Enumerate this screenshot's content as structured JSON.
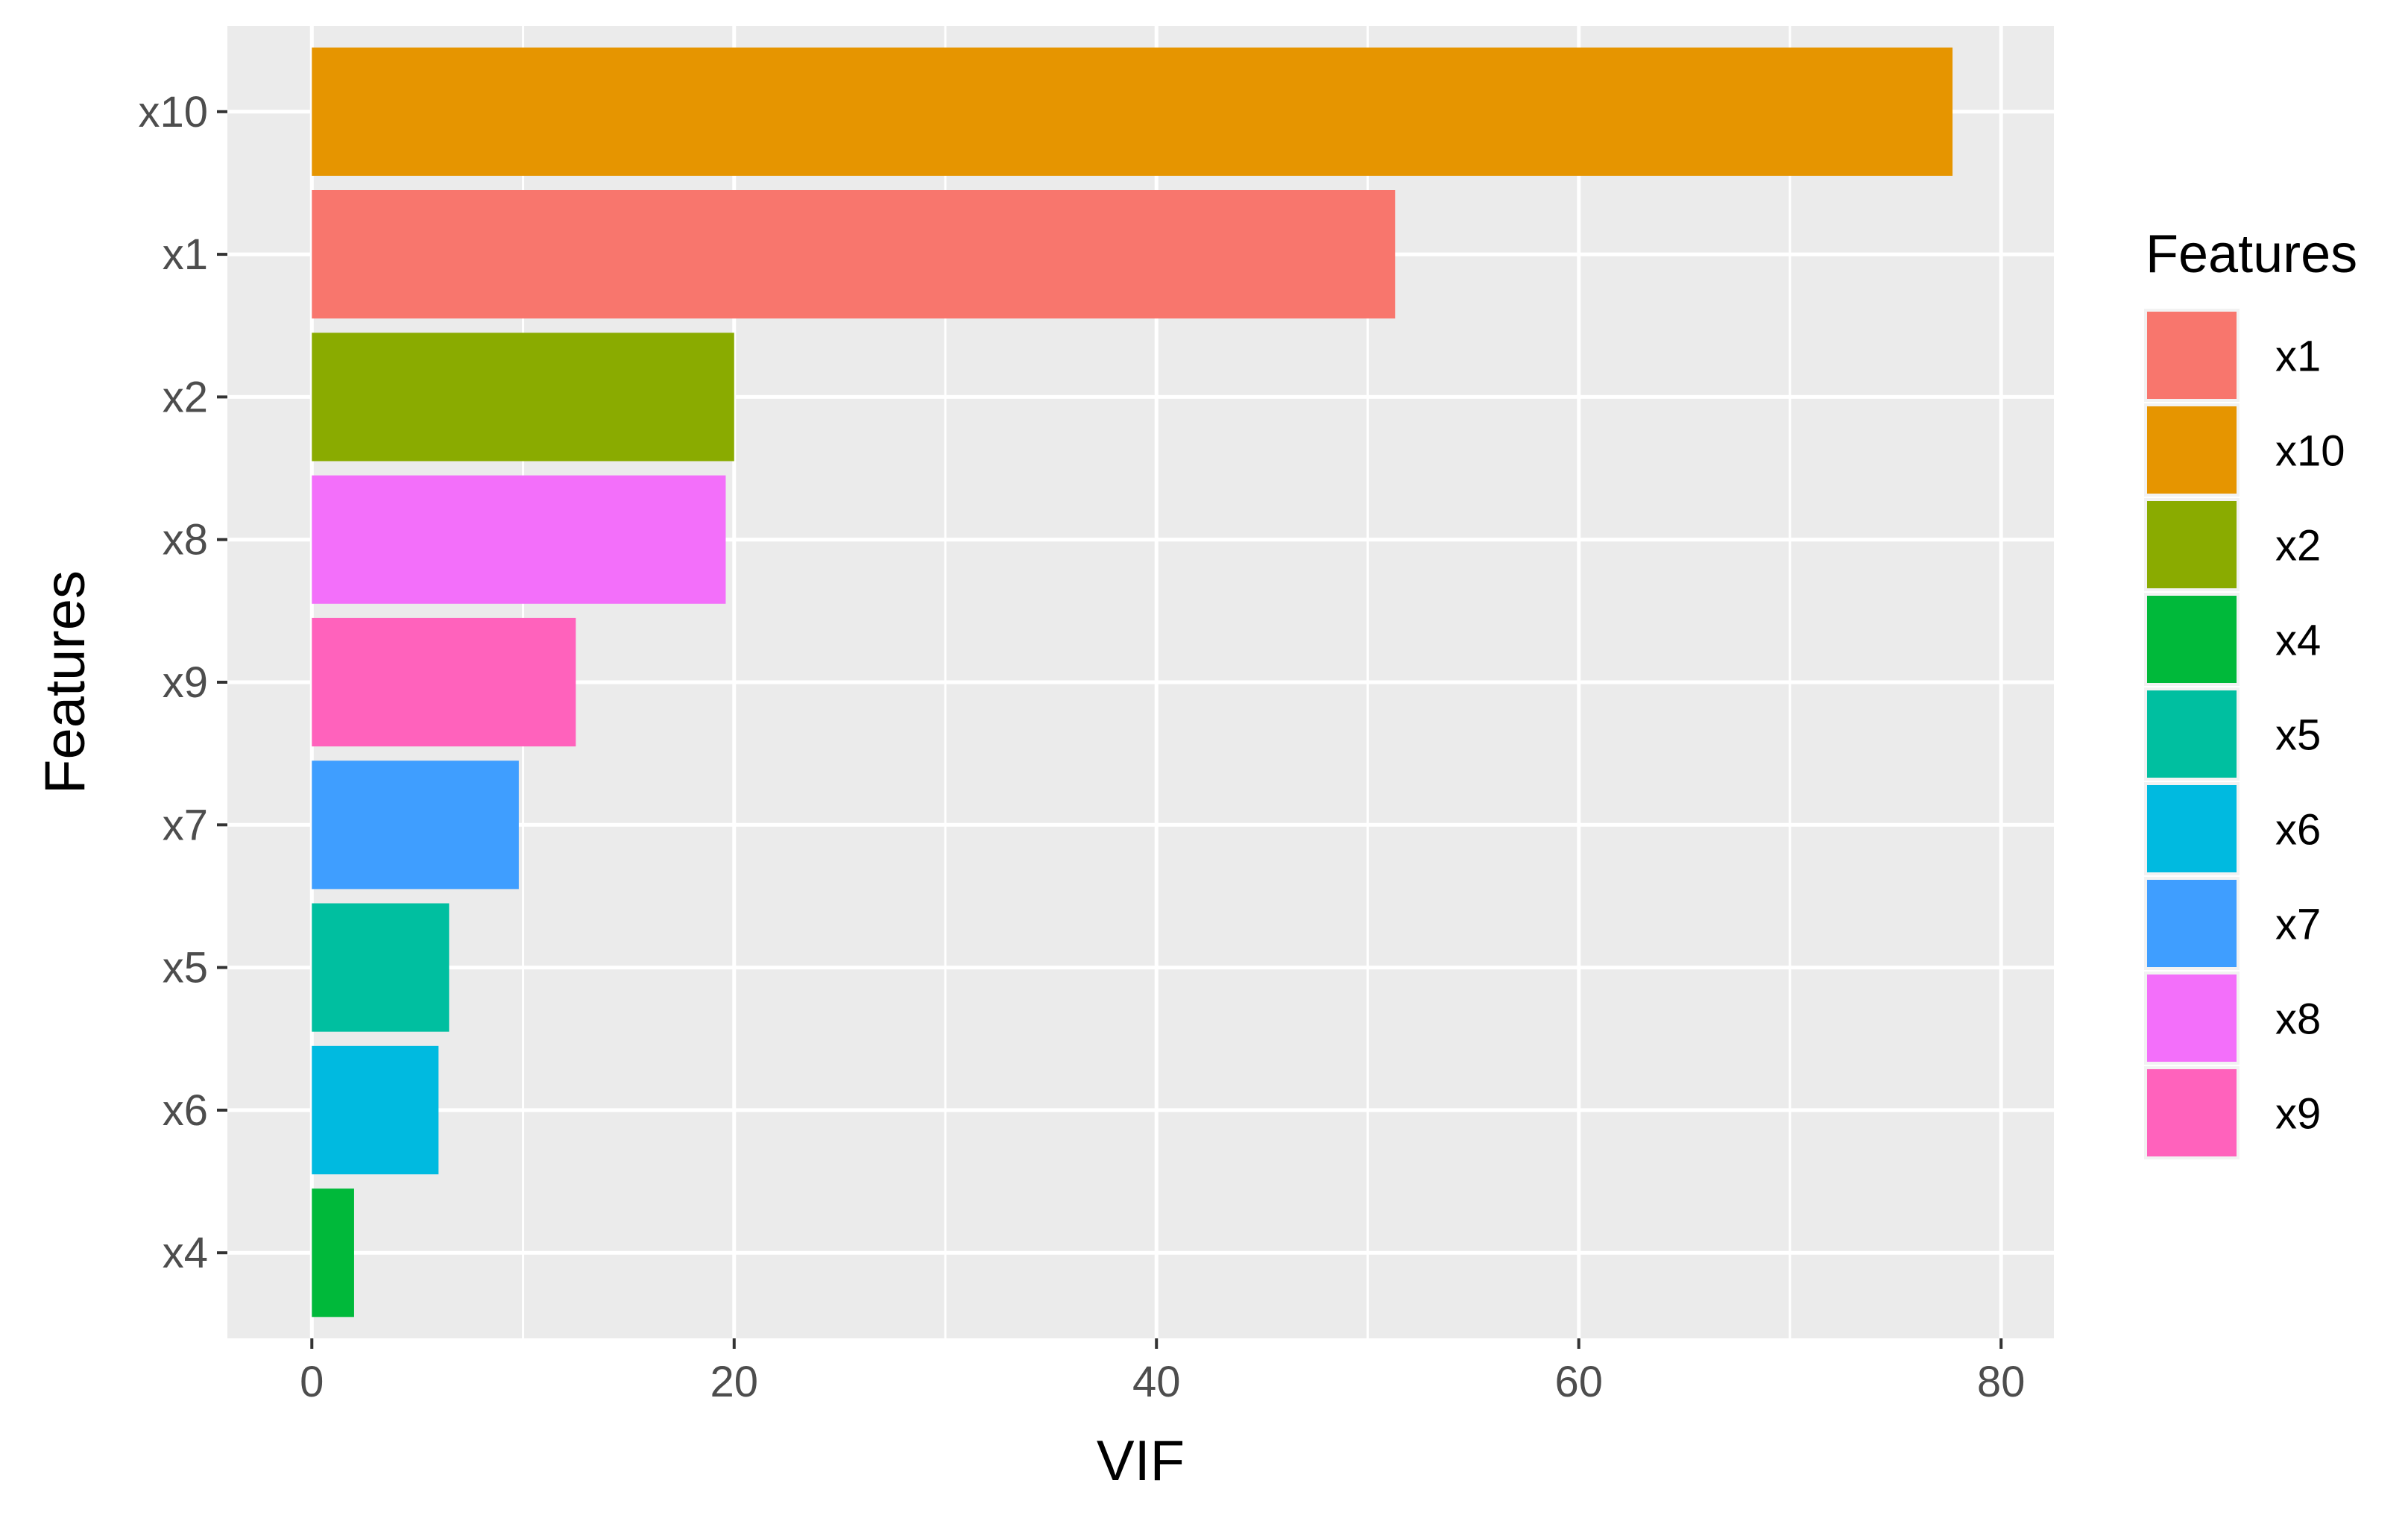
{
  "chart_data": {
    "type": "bar",
    "orientation": "horizontal",
    "title": "",
    "xlabel": "VIF",
    "ylabel": "Features",
    "xlim": [
      -4,
      82.5
    ],
    "xticks": [
      0,
      20,
      40,
      60,
      80
    ],
    "x_minor_gridlines": [
      10,
      30,
      50,
      70
    ],
    "grid": true,
    "panel_background": "#ebebeb",
    "gridline_color": "#ffffff",
    "bars": [
      {
        "category": "x10",
        "value": 77.7,
        "color": "#E69500"
      },
      {
        "category": "x1",
        "value": 51.3,
        "color": "#F8766D"
      },
      {
        "category": "x2",
        "value": 20.0,
        "color": "#8AAB00"
      },
      {
        "category": "x8",
        "value": 19.6,
        "color": "#F36FFA"
      },
      {
        "category": "x9",
        "value": 12.5,
        "color": "#FF62BC"
      },
      {
        "category": "x7",
        "value": 9.8,
        "color": "#3F9EFF"
      },
      {
        "category": "x5",
        "value": 6.5,
        "color": "#00BFA0"
      },
      {
        "category": "x6",
        "value": 6.0,
        "color": "#00BAE0"
      },
      {
        "category": "x4",
        "value": 2.0,
        "color": "#00B93A"
      }
    ],
    "legend": {
      "title": "Features",
      "placement": "right",
      "entries": [
        {
          "label": "x1",
          "color": "#F8766D"
        },
        {
          "label": "x10",
          "color": "#E69500"
        },
        {
          "label": "x2",
          "color": "#8AAB00"
        },
        {
          "label": "x4",
          "color": "#00B93A"
        },
        {
          "label": "x5",
          "color": "#00BFA0"
        },
        {
          "label": "x6",
          "color": "#00BAE0"
        },
        {
          "label": "x7",
          "color": "#3F9EFF"
        },
        {
          "label": "x8",
          "color": "#F36FFA"
        },
        {
          "label": "x9",
          "color": "#FF62BC"
        }
      ]
    }
  }
}
